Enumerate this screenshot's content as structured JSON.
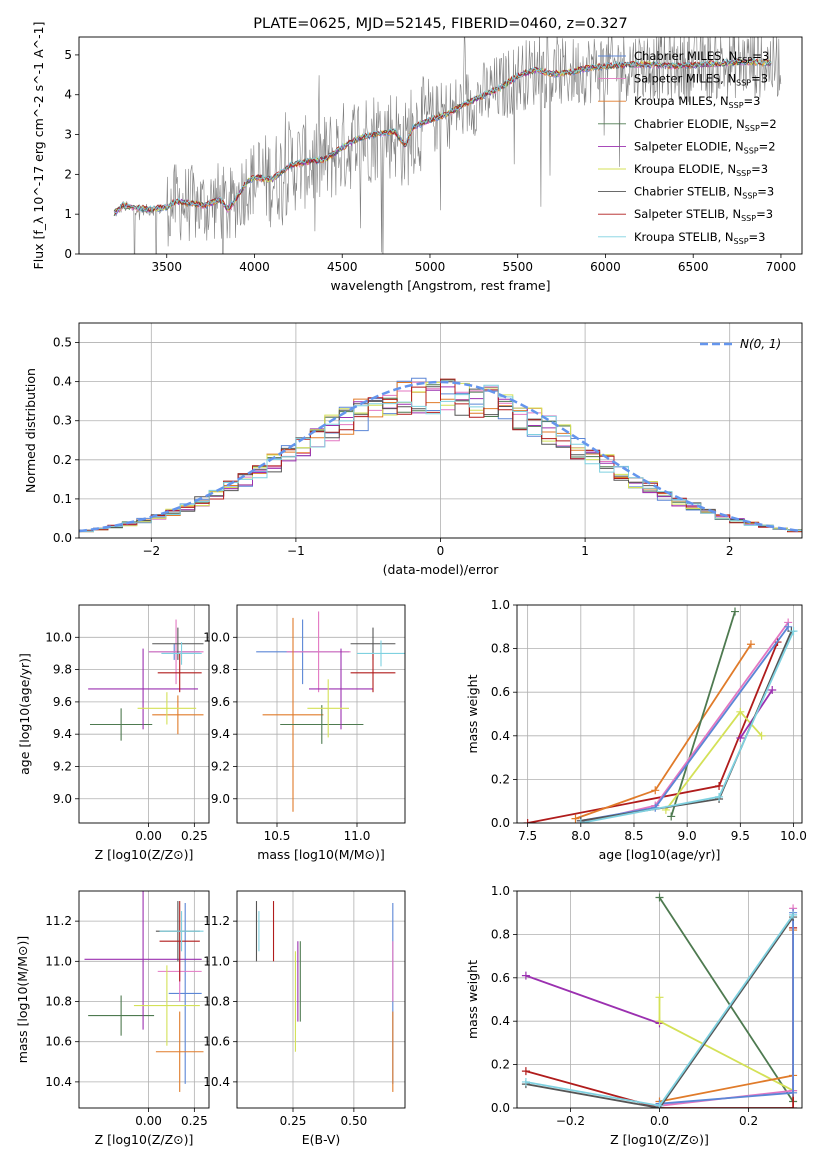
{
  "colors": {
    "Chabrier MILES": "#5b86d6",
    "Salpeter MILES": "#e377c2",
    "Kroupa MILES": "#e07b2a",
    "Chabrier ELODIE": "#4e7a50",
    "Salpeter ELODIE": "#9b30b0",
    "Kroupa ELODIE": "#d4e157",
    "Chabrier STELIB": "#555555",
    "Salpeter STELIB": "#b01c1c",
    "Kroupa STELIB": "#7fd1e0",
    "data": "#808080",
    "normal": "#6495ed"
  },
  "chart_data": [
    {
      "id": "spectrum",
      "type": "line",
      "title": "PLATE=0625, MJD=52145, FIBERID=0460, z=0.327",
      "xlabel": "wavelength [Angstrom, rest frame]",
      "ylabel": "Flux [f_λ 10^-17 erg cm^-2 s^-1 A^-1]",
      "xlim": [
        3000,
        7120
      ],
      "ylim": [
        0,
        5.45
      ],
      "xticks": [
        3500,
        4000,
        4500,
        5000,
        5500,
        6000,
        6500,
        7000
      ],
      "yticks": [
        0,
        1,
        2,
        3,
        4,
        5
      ],
      "legend_position": "right",
      "legend": [
        "Chabrier MILES, N_SSP=3",
        "Salpeter MILES, N_SSP=3",
        "Kroupa MILES, N_SSP=3",
        "Chabrier ELODIE, N_SSP=2",
        "Salpeter ELODIE, N_SSP=2",
        "Kroupa ELODIE, N_SSP=3",
        "Chabrier STELIB, N_SSP=3",
        "Salpeter STELIB, N_SSP=3",
        "Kroupa STELIB, N_SSP=3"
      ],
      "model_x": [
        3200,
        3250,
        3300,
        3400,
        3500,
        3550,
        3650,
        3720,
        3800,
        3850,
        3900,
        3960,
        4000,
        4100,
        4200,
        4300,
        4400,
        4500,
        4600,
        4700,
        4800,
        4860,
        4900,
        5000,
        5100,
        5200,
        5300,
        5400,
        5500,
        5600,
        5700,
        5800,
        5900,
        6000,
        6200,
        6400,
        6600,
        6800,
        6950
      ],
      "model_y": [
        1.0,
        1.2,
        1.15,
        1.1,
        1.15,
        1.3,
        1.25,
        1.2,
        1.35,
        1.1,
        1.4,
        1.8,
        1.9,
        1.85,
        2.2,
        2.3,
        2.35,
        2.65,
        2.9,
        3.0,
        3.05,
        2.7,
        3.15,
        3.35,
        3.5,
        3.75,
        3.95,
        4.15,
        4.45,
        4.6,
        4.5,
        4.55,
        4.65,
        4.7,
        4.75,
        4.7,
        4.75,
        4.8,
        4.78
      ],
      "data_range": [
        3200,
        7000
      ]
    },
    {
      "id": "residuals",
      "type": "histogram",
      "xlabel": "(data-model)/error",
      "ylabel": "Normed distribution",
      "xlim": [
        -2.5,
        2.5
      ],
      "ylim": [
        0,
        0.55
      ],
      "xticks": [
        -2,
        -1,
        0,
        1,
        2
      ],
      "yticks": [
        0.0,
        0.1,
        0.2,
        0.3,
        0.4,
        0.5
      ],
      "legend_position": "top-right",
      "legend": "N(0, 1)",
      "bin_width": 0.1,
      "bins_start": -2.5
    },
    {
      "id": "age-vs-Z",
      "type": "scatter",
      "xlabel": "Z [log10(Z/Z⊙)]",
      "ylabel": "age [log10(age/yr)]",
      "xlim": [
        -0.38,
        0.33
      ],
      "ylim": [
        8.85,
        10.2
      ],
      "xticks": [
        0.0,
        0.25
      ],
      "yticks": [
        9.0,
        9.2,
        9.4,
        9.6,
        9.8,
        10.0
      ],
      "points": [
        {
          "m": "Chabrier MILES",
          "x": 0.14,
          "xe": 0.14,
          "y": 9.91,
          "ye": 0.05
        },
        {
          "m": "Salpeter MILES",
          "x": 0.15,
          "xe": 0.15,
          "y": 9.91,
          "ye": 0.2
        },
        {
          "m": "Kroupa MILES",
          "x": 0.16,
          "xe": 0.14,
          "y": 9.52,
          "ye": 0.12
        },
        {
          "m": "Chabrier ELODIE",
          "x": -0.15,
          "xe": 0.17,
          "y": 9.46,
          "ye": 0.1
        },
        {
          "m": "Salpeter ELODIE",
          "x": -0.03,
          "xe": 0.3,
          "y": 9.68,
          "ye": 0.25
        },
        {
          "m": "Kroupa ELODIE",
          "x": 0.1,
          "xe": 0.16,
          "y": 9.56,
          "ye": 0.1
        },
        {
          "m": "Chabrier STELIB",
          "x": 0.16,
          "xe": 0.14,
          "y": 9.96,
          "ye": 0.1
        },
        {
          "m": "Salpeter STELIB",
          "x": 0.17,
          "xe": 0.12,
          "y": 9.78,
          "ye": 0.12
        },
        {
          "m": "Kroupa STELIB",
          "x": 0.18,
          "xe": 0.11,
          "y": 9.9,
          "ye": 0.07
        }
      ]
    },
    {
      "id": "age-vs-mass",
      "type": "scatter",
      "xlabel": "mass [log10(M/M⊙)]",
      "ylabel": "",
      "xlim": [
        10.25,
        11.3
      ],
      "ylim": [
        8.85,
        10.2
      ],
      "xticks": [
        10.5,
        11.0
      ],
      "yticks": [
        9.0,
        9.2,
        9.4,
        9.6,
        9.8,
        10.0
      ],
      "points": [
        {
          "m": "Chabrier MILES",
          "x": 10.66,
          "xe": 0.29,
          "y": 9.91,
          "ye": 0.2
        },
        {
          "m": "Salpeter MILES",
          "x": 10.76,
          "xe": 0.2,
          "y": 9.91,
          "ye": 0.25
        },
        {
          "m": "Kroupa MILES",
          "x": 10.6,
          "xe": 0.19,
          "y": 9.52,
          "ye": 0.6
        },
        {
          "m": "Chabrier ELODIE",
          "x": 10.78,
          "xe": 0.26,
          "y": 9.46,
          "ye": 0.12
        },
        {
          "m": "Salpeter ELODIE",
          "x": 10.9,
          "xe": 0.2,
          "y": 9.68,
          "ye": 0.25
        },
        {
          "m": "Kroupa ELODIE",
          "x": 10.82,
          "xe": 0.13,
          "y": 9.56,
          "ye": 0.18
        },
        {
          "m": "Chabrier STELIB",
          "x": 11.1,
          "xe": 0.14,
          "y": 9.96,
          "ye": 0.1
        },
        {
          "m": "Salpeter STELIB",
          "x": 11.1,
          "xe": 0.14,
          "y": 9.78,
          "ye": 0.12
        },
        {
          "m": "Kroupa STELIB",
          "x": 11.15,
          "xe": 0.15,
          "y": 9.9,
          "ye": 0.08
        }
      ]
    },
    {
      "id": "mass-weight-vs-age",
      "type": "line",
      "xlabel": "age [log10(age/yr)]",
      "ylabel": "mass weight",
      "xlim": [
        7.4,
        10.08
      ],
      "ylim": [
        0,
        1
      ],
      "xticks": [
        7.5,
        8.0,
        8.5,
        9.0,
        9.5,
        10.0
      ],
      "yticks": [
        0.0,
        0.2,
        0.4,
        0.6,
        0.8,
        1.0
      ],
      "series": [
        {
          "m": "Salpeter STELIB",
          "x": [
            7.5,
            9.3,
            9.85
          ],
          "y": [
            0.0,
            0.17,
            0.83
          ]
        },
        {
          "m": "Kroupa MILES",
          "x": [
            7.95,
            8.7,
            9.6
          ],
          "y": [
            0.02,
            0.15,
            0.82
          ]
        },
        {
          "m": "Chabrier ELODIE",
          "x": [
            8.85,
            9.45
          ],
          "y": [
            0.03,
            0.97
          ]
        },
        {
          "m": "Kroupa ELODIE",
          "x": [
            8.8,
            9.5,
            9.7
          ],
          "y": [
            0.06,
            0.51,
            0.4
          ]
        },
        {
          "m": "Salpeter ELODIE",
          "x": [
            9.5,
            9.8
          ],
          "y": [
            0.39,
            0.61
          ]
        },
        {
          "m": "Salpeter MILES",
          "x": [
            8.0,
            8.7,
            9.95
          ],
          "y": [
            0.0,
            0.08,
            0.92
          ]
        },
        {
          "m": "Chabrier MILES",
          "x": [
            8.0,
            8.7,
            9.95
          ],
          "y": [
            0.01,
            0.07,
            0.9
          ]
        },
        {
          "m": "Chabrier STELIB",
          "x": [
            8.0,
            9.3,
            9.98
          ],
          "y": [
            0.01,
            0.11,
            0.88
          ]
        },
        {
          "m": "Kroupa STELIB",
          "x": [
            8.0,
            9.3,
            10.0
          ],
          "y": [
            0.0,
            0.12,
            0.88
          ]
        }
      ]
    },
    {
      "id": "mass-vs-Z",
      "type": "scatter",
      "xlabel": "Z [log10(Z/Z⊙)]",
      "ylabel": "mass [log10(M/M⊙)]",
      "xlim": [
        -0.38,
        0.33
      ],
      "ylim": [
        10.27,
        11.35
      ],
      "xticks": [
        0.0,
        0.25
      ],
      "yticks": [
        10.4,
        10.6,
        10.8,
        11.0,
        11.2
      ],
      "points": [
        {
          "m": "Chabrier MILES",
          "x": 0.2,
          "xe": 0.09,
          "y": 10.84,
          "ye": 0.45
        },
        {
          "m": "Salpeter MILES",
          "x": 0.17,
          "xe": 0.12,
          "y": 10.95,
          "ye": 0.15
        },
        {
          "m": "Kroupa MILES",
          "x": 0.17,
          "xe": 0.13,
          "y": 10.55,
          "ye": 0.2
        },
        {
          "m": "Chabrier ELODIE",
          "x": -0.15,
          "xe": 0.18,
          "y": 10.73,
          "ye": 0.1
        },
        {
          "m": "Salpeter ELODIE",
          "x": -0.03,
          "xe": 0.32,
          "y": 11.01,
          "ye": 0.35
        },
        {
          "m": "Kroupa ELODIE",
          "x": 0.1,
          "xe": 0.18,
          "y": 10.78,
          "ye": 0.2
        },
        {
          "m": "Chabrier STELIB",
          "x": 0.16,
          "xe": 0.12,
          "y": 11.15,
          "ye": 0.15
        },
        {
          "m": "Salpeter STELIB",
          "x": 0.17,
          "xe": 0.11,
          "y": 11.1,
          "ye": 0.2
        },
        {
          "m": "Kroupa STELIB",
          "x": 0.18,
          "xe": 0.12,
          "y": 11.15,
          "ye": 0.1
        }
      ]
    },
    {
      "id": "mass-vs-ebv",
      "type": "scatter",
      "xlabel": "E(B-V)",
      "ylabel": "",
      "xlim": [
        0.02,
        0.71
      ],
      "ylim": [
        10.27,
        11.35
      ],
      "xticks": [
        0.25,
        0.5
      ],
      "yticks": [
        10.4,
        10.6,
        10.8,
        11.0,
        11.2
      ],
      "points": [
        {
          "m": "Chabrier MILES",
          "x": 0.66,
          "xe": 0,
          "y": 10.84,
          "ye": 0.45
        },
        {
          "m": "Salpeter MILES",
          "x": 0.66,
          "xe": 0,
          "y": 10.95,
          "ye": 0.15
        },
        {
          "m": "Kroupa MILES",
          "x": 0.66,
          "xe": 0,
          "y": 10.55,
          "ye": 0.2
        },
        {
          "m": "Chabrier ELODIE",
          "x": 0.28,
          "xe": 0,
          "y": 10.9,
          "ye": 0.2
        },
        {
          "m": "Salpeter ELODIE",
          "x": 0.27,
          "xe": 0,
          "y": 10.9,
          "ye": 0.2
        },
        {
          "m": "Kroupa ELODIE",
          "x": 0.26,
          "xe": 0,
          "y": 10.8,
          "ye": 0.25
        },
        {
          "m": "Chabrier STELIB",
          "x": 0.1,
          "xe": 0,
          "y": 11.15,
          "ye": 0.15
        },
        {
          "m": "Salpeter STELIB",
          "x": 0.17,
          "xe": 0,
          "y": 11.15,
          "ye": 0.15
        },
        {
          "m": "Kroupa STELIB",
          "x": 0.11,
          "xe": 0,
          "y": 11.15,
          "ye": 0.1
        }
      ]
    },
    {
      "id": "mass-weight-vs-Z",
      "type": "line",
      "xlabel": "Z [log10(Z/Z⊙)]",
      "ylabel": "mass weight",
      "xlim": [
        -0.32,
        0.32
      ],
      "ylim": [
        0,
        1
      ],
      "xticks": [
        -0.2,
        0.0,
        0.2
      ],
      "yticks": [
        0.0,
        0.2,
        0.4,
        0.6,
        0.8,
        1.0
      ],
      "series": [
        {
          "m": "Salpeter ELODIE",
          "x": [
            -0.3,
            0.0
          ],
          "y": [
            0.61,
            0.39
          ]
        },
        {
          "m": "Chabrier ELODIE",
          "x": [
            0.0,
            0.3
          ],
          "y": [
            0.97,
            0.03
          ]
        },
        {
          "m": "Kroupa ELODIE",
          "x": [
            0.0,
            0.0,
            0.3
          ],
          "y": [
            0.51,
            0.4,
            0.08
          ]
        },
        {
          "m": "Salpeter STELIB",
          "x": [
            -0.3,
            0.0,
            0.3,
            0.3
          ],
          "y": [
            0.17,
            0.0,
            0.0,
            0.83
          ]
        },
        {
          "m": "Kroupa MILES",
          "x": [
            0.0,
            0.3,
            0.3
          ],
          "y": [
            0.03,
            0.15,
            0.82
          ]
        },
        {
          "m": "Salpeter MILES",
          "x": [
            0.0,
            0.3,
            0.3
          ],
          "y": [
            0.01,
            0.08,
            0.92
          ]
        },
        {
          "m": "Chabrier MILES",
          "x": [
            0.0,
            0.3,
            0.3
          ],
          "y": [
            0.02,
            0.07,
            0.9
          ]
        },
        {
          "m": "Chabrier STELIB",
          "x": [
            -0.3,
            0.0,
            0.3
          ],
          "y": [
            0.11,
            0.0,
            0.88
          ]
        },
        {
          "m": "Kroupa STELIB",
          "x": [
            -0.3,
            0.0,
            0.3
          ],
          "y": [
            0.12,
            0.01,
            0.89
          ]
        }
      ]
    }
  ]
}
